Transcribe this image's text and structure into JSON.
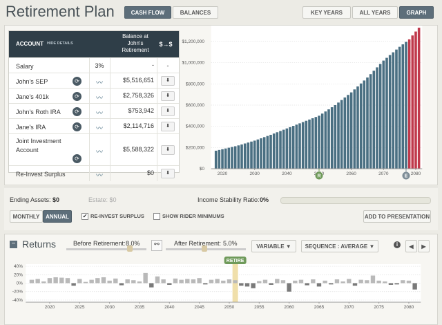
{
  "header": {
    "title": "Retirement Plan",
    "view_buttons": [
      "CASH FLOW",
      "BALANCES"
    ],
    "range_buttons": [
      "KEY YEARS",
      "ALL YEARS",
      "GRAPH"
    ]
  },
  "table": {
    "headers": {
      "account": "ACCOUNT",
      "toggle": "HIDE DETAILS",
      "balance": "Balance at John's Retirement",
      "transfer": "$→$"
    },
    "rows": [
      {
        "account": "Salary",
        "growth": "3%",
        "balance": "-",
        "action": "-"
      },
      {
        "account": "John's SEP",
        "balance": "$5,516,651"
      },
      {
        "account": "Jane's 401k",
        "balance": "$2,758,326"
      },
      {
        "account": "John's Roth IRA",
        "balance": "$753,942"
      },
      {
        "account": "Jane's IRA",
        "balance": "$2,114,716"
      },
      {
        "account": "Joint Investment Account",
        "balance": "$5,588,322"
      },
      {
        "account": "Re-Invest Surplus",
        "balance": "$0"
      }
    ]
  },
  "summary": {
    "ending_label": "Ending Assets:",
    "ending_value": "$0",
    "estate": "Estate: $0",
    "stability_label": "Income Stability Ratio:",
    "stability_value": "0%"
  },
  "options": {
    "period_buttons": [
      "MONTHLY",
      "ANNUAL"
    ],
    "reinvest": "RE-INVEST SURPLUS",
    "rider": "SHOW RIDER MINIMUMS",
    "presentation": "ADD TO PRESENTATION"
  },
  "returns_controls": {
    "title": "Returns",
    "before": "Before Retirement:",
    "before_value": "8.0%",
    "after": "After Retirement:",
    "after_value": "5.0%",
    "mode": "VARIABLE",
    "sequence": "SEQUENCE : AVERAGE"
  },
  "chart_data": [
    {
      "type": "bar",
      "x": [
        2018,
        2019,
        2020,
        2021,
        2022,
        2023,
        2024,
        2025,
        2026,
        2027,
        2028,
        2029,
        2030,
        2031,
        2032,
        2033,
        2034,
        2035,
        2036,
        2037,
        2038,
        2039,
        2040,
        2041,
        2042,
        2043,
        2044,
        2045,
        2046,
        2047,
        2048,
        2049,
        2050,
        2051,
        2052,
        2053,
        2054,
        2055,
        2056,
        2057,
        2058,
        2059,
        2060,
        2061,
        2062,
        2063,
        2064,
        2065,
        2066,
        2067,
        2068,
        2069,
        2070,
        2071,
        2072,
        2073,
        2074,
        2075,
        2076,
        2077,
        2078,
        2079,
        2080,
        2081
      ],
      "series": [
        {
          "color": "#4a6f82",
          "values": [
            170000,
            177000,
            184000,
            191000,
            198000,
            205000,
            212000,
            220000,
            229000,
            238000,
            247000,
            256000,
            265000,
            276000,
            287000,
            298000,
            309000,
            320000,
            332000,
            344000,
            356000,
            368000,
            380000,
            392000,
            404000,
            416000,
            428000,
            440000,
            452000,
            464000,
            476000,
            488000,
            500000,
            520000,
            540000,
            560000,
            580000,
            600000,
            624000,
            648000,
            672000,
            696000,
            720000,
            748000,
            776000,
            804000,
            832000,
            860000,
            892000,
            924000,
            956000,
            988000,
            1020000,
            1046000,
            1072000,
            1098000,
            1124000,
            1150000,
            1173000,
            1196000,
            null,
            null,
            null,
            null
          ]
        },
        {
          "color": "#c0394b",
          "values": [
            null,
            null,
            null,
            null,
            null,
            null,
            null,
            null,
            null,
            null,
            null,
            null,
            null,
            null,
            null,
            null,
            null,
            null,
            null,
            null,
            null,
            null,
            null,
            null,
            null,
            null,
            null,
            null,
            null,
            null,
            null,
            null,
            null,
            null,
            null,
            null,
            null,
            null,
            null,
            null,
            null,
            null,
            null,
            null,
            null,
            null,
            null,
            null,
            null,
            null,
            null,
            null,
            null,
            null,
            null,
            null,
            null,
            null,
            null,
            null,
            1220000,
            1257000,
            1294000,
            1330000
          ]
        }
      ],
      "xlim": [
        2016.5,
        2082
      ],
      "xticks": [
        2020,
        2030,
        2040,
        2050,
        2060,
        2070,
        2080
      ],
      "ylim": [
        0,
        1350000
      ],
      "yticks": [
        {
          "value": 0,
          "label": "$0"
        },
        {
          "value": 200000,
          "label": "$200,000"
        },
        {
          "value": 400000,
          "label": "$400,000"
        },
        {
          "value": 600000,
          "label": "$600,000"
        },
        {
          "value": 800000,
          "label": "$800,000"
        },
        {
          "value": 1000000,
          "label": "$1,000,000"
        },
        {
          "value": 1200000,
          "label": "$1,200,000"
        }
      ],
      "grid": true,
      "markers": [
        {
          "label": "R",
          "x": 2050,
          "color": "#6f9a5a"
        },
        {
          "label": "E",
          "x": 2077,
          "color": "#7d8c96"
        }
      ]
    },
    {
      "type": "bar",
      "x": [
        2017,
        2018,
        2019,
        2020,
        2021,
        2022,
        2023,
        2024,
        2025,
        2026,
        2027,
        2028,
        2029,
        2030,
        2031,
        2032,
        2033,
        2034,
        2035,
        2036,
        2037,
        2038,
        2039,
        2040,
        2041,
        2042,
        2043,
        2044,
        2045,
        2046,
        2047,
        2048,
        2049,
        2050,
        2051,
        2052,
        2053,
        2054,
        2055,
        2056,
        2057,
        2058,
        2059,
        2060,
        2061,
        2062,
        2063,
        2064,
        2065,
        2066,
        2067,
        2068,
        2069,
        2070,
        2071,
        2072,
        2073,
        2074,
        2075,
        2076,
        2077,
        2078,
        2079,
        2080,
        2081
      ],
      "series": [
        {
          "color": "#b9b9b9",
          "values": [
            8,
            10,
            4,
            12,
            14,
            13,
            12,
            -6,
            10,
            3,
            8,
            12,
            14,
            6,
            11,
            -5,
            9,
            7,
            4,
            24,
            -10,
            16,
            9,
            -4,
            11,
            8,
            10,
            9,
            12,
            -3,
            8,
            10,
            6,
            9,
            7,
            -6,
            -8,
            -12,
            5,
            8,
            -4,
            10,
            7,
            -20,
            6,
            8,
            -5,
            9,
            -8,
            6,
            -3,
            9,
            4,
            10,
            -6,
            8,
            7,
            18,
            6,
            4,
            -4,
            -3,
            7,
            6,
            -15
          ]
        }
      ],
      "negative_color": "#7a7a7a",
      "xlim": [
        2016,
        2082
      ],
      "xticks": [
        2020,
        2025,
        2030,
        2035,
        2040,
        2045,
        2050,
        2055,
        2060,
        2065,
        2070,
        2075,
        2080
      ],
      "ylim": [
        -45,
        45
      ],
      "yticks": [
        {
          "value": 40,
          "label": "40%"
        },
        {
          "value": 20,
          "label": "20%"
        },
        {
          "value": 0,
          "label": "0%"
        },
        {
          "value": -20,
          "label": "-20%"
        },
        {
          "value": -40,
          "label": "-40%"
        }
      ],
      "grid": true,
      "markers": [
        {
          "label": "RETIRE",
          "x": 2051,
          "color": "#6f9a5a"
        }
      ]
    }
  ]
}
